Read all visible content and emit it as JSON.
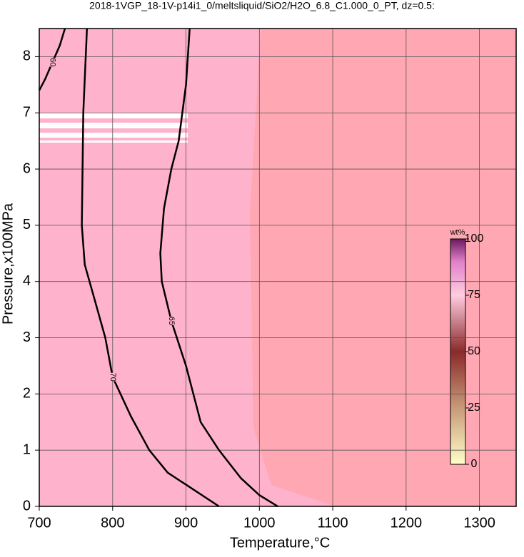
{
  "chart_data": {
    "type": "contour",
    "title": "2018-1VGP_18-1V-p14i1_0/meltsliquid/SiO2/H2O_6.8_C1.000_0_PT, dz=0.5:",
    "x_label": "Temperature,°C",
    "y_label": "Pressure,x100MPa",
    "xlim": [
      700,
      1350
    ],
    "ylim": [
      0,
      8.5
    ],
    "xticks": [
      700,
      800,
      900,
      1000,
      1100,
      1200,
      1300
    ],
    "yticks": [
      0,
      1,
      2,
      3,
      4,
      5,
      6,
      7,
      8
    ],
    "grid": true,
    "contours": [
      {
        "level": 70,
        "x": [
          765,
          760,
          758,
          762,
          775,
          790,
          800,
          825,
          850,
          875,
          910,
          945
        ],
        "y": [
          8.5,
          7,
          5,
          4.3,
          3.7,
          3,
          2.3,
          1.6,
          1,
          0.6,
          0.3,
          0
        ]
      },
      {
        "level": 65,
        "x": [
          905,
          900,
          895,
          890,
          880,
          870,
          865,
          867,
          880,
          900,
          910,
          920,
          945,
          975,
          1000,
          1025
        ],
        "y": [
          8.5,
          7.5,
          7,
          6.5,
          6,
          5.3,
          4.5,
          4,
          3.3,
          2.5,
          2,
          1.5,
          1,
          0.5,
          0.2,
          0
        ]
      },
      {
        "level": 60,
        "x": [
          735,
          728,
          718,
          708,
          700
        ],
        "y": [
          8.5,
          8.2,
          7.9,
          7.6,
          7.4
        ]
      }
    ],
    "colorbar": {
      "label": "wt%",
      "lim": [
        0,
        100
      ],
      "ticks": [
        0,
        25,
        50,
        75,
        100
      ]
    }
  }
}
